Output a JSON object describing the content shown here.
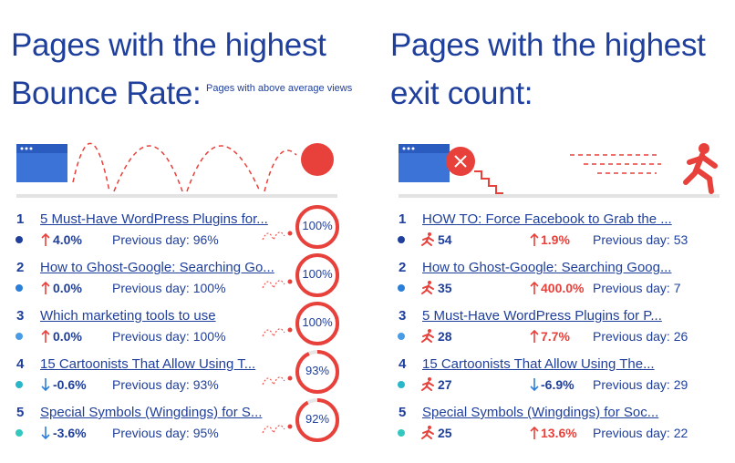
{
  "bounce": {
    "title_line1": "Pages with the highest",
    "title_line2": "Bounce Rate:",
    "subtitle": "Pages with above average views",
    "rows": [
      {
        "rank": 1,
        "title": "5 Must-Have WordPress Plugins for...",
        "change": "4.0%",
        "previous": "Previous day: 96%",
        "rate": "100%"
      },
      {
        "rank": 2,
        "title": "How to Ghost-Google: Searching Go...",
        "change": "0.0%",
        "previous": "Previous day: 100%",
        "rate": "100%"
      },
      {
        "rank": 3,
        "title": "Which marketing tools to use",
        "change": "0.0%",
        "previous": "Previous day: 100%",
        "rate": "100%"
      },
      {
        "rank": 4,
        "title": "15 Cartoonists That Allow Using T...",
        "change": "-0.6%",
        "previous": "Previous day: 93%",
        "rate": "93%"
      },
      {
        "rank": 5,
        "title": "Special Symbols (Wingdings) for S...",
        "change": "-3.6%",
        "previous": "Previous day: 95%",
        "rate": "92%"
      }
    ]
  },
  "exit": {
    "title_line1": "Pages with the highest",
    "title_line2": "exit count:",
    "rows": [
      {
        "rank": 1,
        "title": "HOW TO: Force Facebook to Grab the ...",
        "exits": 54,
        "change": "1.9%",
        "previous": "Previous day: 53"
      },
      {
        "rank": 2,
        "title": "How to Ghost-Google: Searching Goog...",
        "exits": 35,
        "change": "400.0%",
        "previous": "Previous day: 7"
      },
      {
        "rank": 3,
        "title": "5 Must-Have WordPress Plugins for P...",
        "exits": 28,
        "change": "7.7%",
        "previous": "Previous day: 26"
      },
      {
        "rank": 4,
        "title": "15 Cartoonists That Allow Using The...",
        "exits": 27,
        "change": "-6.9%",
        "previous": "Previous day: 29"
      },
      {
        "rank": 5,
        "title": "Special Symbols (Wingdings) for Soc...",
        "exits": 25,
        "change": "13.6%",
        "previous": "Previous day: 22"
      }
    ]
  }
}
